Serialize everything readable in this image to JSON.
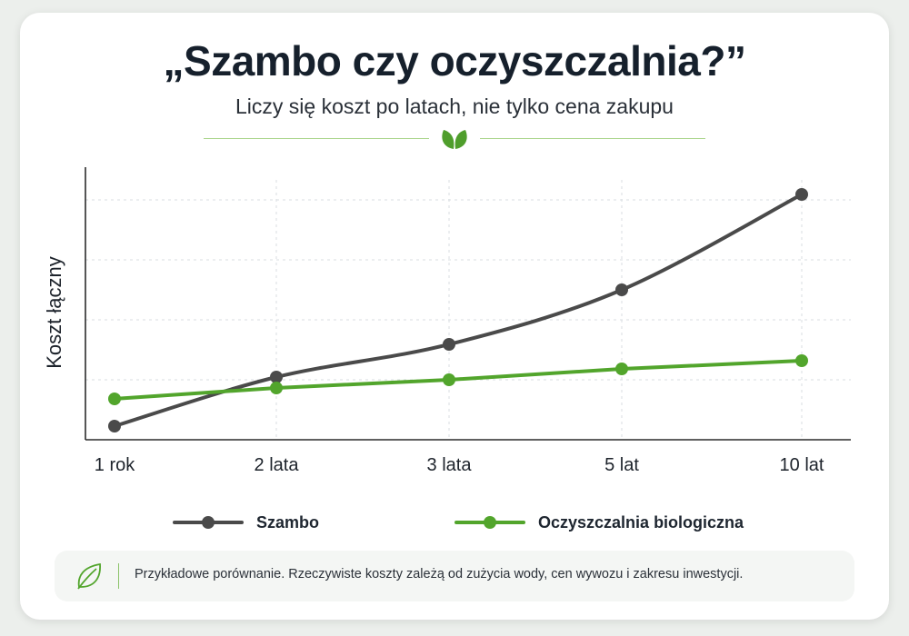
{
  "header": {
    "title": "„Szambo czy oczyszczalnia?”",
    "subtitle": "Liczy się koszt po latach, nie tylko cena zakupu",
    "divider_icon": "leaf-icon"
  },
  "colors": {
    "szambo": "#4a4a4a",
    "oczyszczalnia": "#52a52c",
    "grid": "#d9dde2",
    "axis": "#2b2b2b"
  },
  "chart_data": {
    "type": "line",
    "categories": [
      "1 rok",
      "2 lata",
      "3 lata",
      "5 lat",
      "10 lat"
    ],
    "ylabel": "Koszt łączny",
    "ylim": [
      0,
      100
    ],
    "grid": true,
    "legend_position": "bottom",
    "series": [
      {
        "name": "Szambo",
        "values": [
          5,
          23,
          35,
          55,
          90
        ]
      },
      {
        "name": "Oczyszczalnia biologiczna",
        "values": [
          15,
          19,
          22,
          26,
          29
        ]
      }
    ]
  },
  "legend": {
    "items": [
      "Szambo",
      "Oczyszczalnia biologiczna"
    ]
  },
  "note": {
    "icon": "leaf-outline-icon",
    "text": "Przykładowe porównanie. Rzeczywiste koszty zależą od zużycia wody, cen wywozu i zakresu inwestycji."
  }
}
